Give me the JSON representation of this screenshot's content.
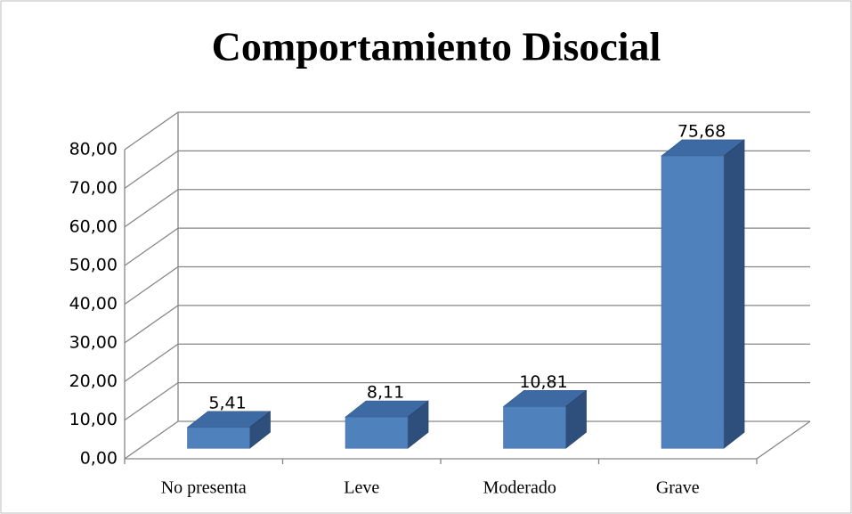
{
  "chart_data": {
    "type": "bar3d",
    "title": "Comportamiento Disocial",
    "categories": [
      "No presenta",
      "Leve",
      "Moderado",
      "Grave"
    ],
    "values": [
      5.41,
      8.11,
      10.81,
      75.68
    ],
    "value_labels": [
      "5,41",
      "8,11",
      "10,81",
      "75,68"
    ],
    "color": "#4f81bd",
    "ylim": [
      0,
      80
    ],
    "yticks": [
      {
        "value": 0,
        "label": "0,00"
      },
      {
        "value": 10,
        "label": "10,00"
      },
      {
        "value": 20,
        "label": "20,00"
      },
      {
        "value": 30,
        "label": "30,00"
      },
      {
        "value": 40,
        "label": "40,00"
      },
      {
        "value": 50,
        "label": "50,00"
      },
      {
        "value": 60,
        "label": "60,00"
      },
      {
        "value": 70,
        "label": "70,00"
      },
      {
        "value": 80,
        "label": "80,00"
      }
    ],
    "grid": true
  }
}
